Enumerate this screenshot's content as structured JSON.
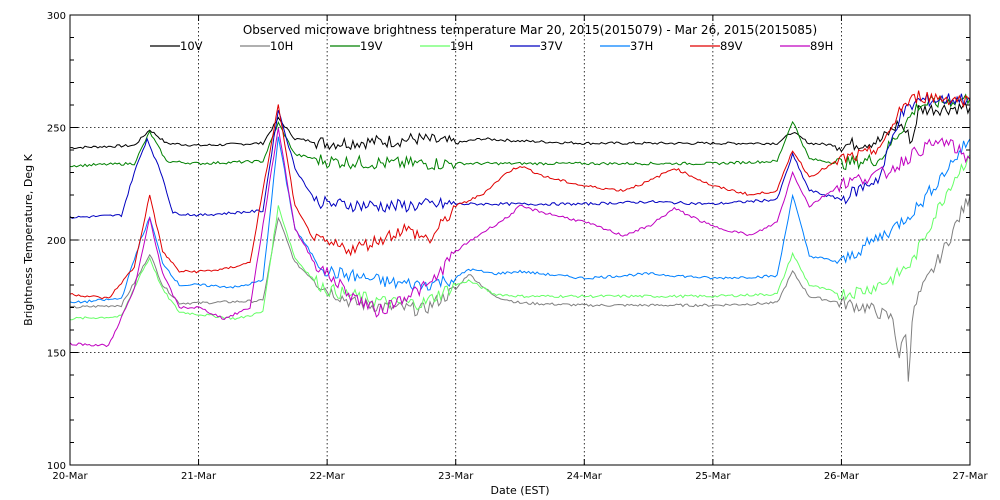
{
  "chart_data": {
    "type": "line",
    "title": "Observed microwave brightness temperature Mar 20, 2015(2015079) - Mar 26, 2015(2015085)",
    "xlabel": "Date (EST)",
    "ylabel": "Brightness Temperature, Deg K",
    "x_categories": [
      "20-Mar",
      "21-Mar",
      "22-Mar",
      "23-Mar",
      "24-Mar",
      "25-Mar",
      "26-Mar",
      "27-Mar"
    ],
    "xlim": [
      0,
      7
    ],
    "ylim": [
      100,
      300
    ],
    "yticks": [
      100,
      150,
      200,
      250,
      300
    ],
    "grid": true,
    "legend_position": "top",
    "x_unit": "days since 20-Mar 00:00",
    "series": [
      {
        "name": "10V",
        "color": "#000000",
        "points": [
          [
            0,
            241
          ],
          [
            0.5,
            242
          ],
          [
            0.62,
            249
          ],
          [
            0.75,
            243
          ],
          [
            1.0,
            242
          ],
          [
            1.5,
            243
          ],
          [
            1.62,
            254
          ],
          [
            1.75,
            245
          ],
          [
            2.0,
            243
          ],
          [
            2.5,
            244
          ],
          [
            2.7,
            245
          ],
          [
            3.0,
            243
          ],
          [
            3.2,
            245
          ],
          [
            3.5,
            244
          ],
          [
            4.0,
            243
          ],
          [
            4.5,
            243
          ],
          [
            5.0,
            243
          ],
          [
            5.5,
            243
          ],
          [
            5.62,
            248
          ],
          [
            5.75,
            243
          ],
          [
            6.0,
            242
          ],
          [
            6.3,
            244
          ],
          [
            6.45,
            252
          ],
          [
            6.55,
            244
          ],
          [
            6.6,
            258
          ],
          [
            7.0,
            259
          ]
        ]
      },
      {
        "name": "10H",
        "color": "#808080",
        "points": [
          [
            0,
            170
          ],
          [
            0.4,
            171
          ],
          [
            0.55,
            186
          ],
          [
            0.62,
            194
          ],
          [
            0.72,
            180
          ],
          [
            0.85,
            172
          ],
          [
            1.0,
            172
          ],
          [
            1.5,
            173
          ],
          [
            1.62,
            210
          ],
          [
            1.75,
            190
          ],
          [
            1.9,
            182
          ],
          [
            2.0,
            178
          ],
          [
            2.2,
            172
          ],
          [
            2.5,
            170
          ],
          [
            2.75,
            169
          ],
          [
            3.0,
            178
          ],
          [
            3.1,
            185
          ],
          [
            3.3,
            175
          ],
          [
            3.5,
            172
          ],
          [
            4.0,
            171
          ],
          [
            4.5,
            171
          ],
          [
            5.0,
            171
          ],
          [
            5.5,
            172
          ],
          [
            5.62,
            186
          ],
          [
            5.75,
            175
          ],
          [
            6.0,
            172
          ],
          [
            6.2,
            170
          ],
          [
            6.4,
            165
          ],
          [
            6.45,
            148
          ],
          [
            6.5,
            160
          ],
          [
            6.52,
            138
          ],
          [
            6.55,
            165
          ],
          [
            6.6,
            175
          ],
          [
            6.8,
            196
          ],
          [
            7.0,
            220
          ]
        ]
      },
      {
        "name": "19V",
        "color": "#008000",
        "points": [
          [
            0,
            233
          ],
          [
            0.5,
            234
          ],
          [
            0.62,
            248
          ],
          [
            0.75,
            235
          ],
          [
            1.0,
            234
          ],
          [
            1.5,
            235
          ],
          [
            1.62,
            252
          ],
          [
            1.75,
            238
          ],
          [
            2.0,
            235
          ],
          [
            2.5,
            234
          ],
          [
            3.0,
            234
          ],
          [
            3.5,
            234
          ],
          [
            4.0,
            234
          ],
          [
            4.5,
            234
          ],
          [
            5.0,
            234
          ],
          [
            5.5,
            235
          ],
          [
            5.62,
            253
          ],
          [
            5.75,
            236
          ],
          [
            6.0,
            234
          ],
          [
            6.3,
            236
          ],
          [
            6.45,
            248
          ],
          [
            6.6,
            260
          ],
          [
            7.0,
            263
          ]
        ]
      },
      {
        "name": "19H",
        "color": "#66FF66",
        "points": [
          [
            0,
            165
          ],
          [
            0.4,
            166
          ],
          [
            0.55,
            185
          ],
          [
            0.62,
            192
          ],
          [
            0.72,
            178
          ],
          [
            0.85,
            168
          ],
          [
            1.0,
            167
          ],
          [
            1.3,
            165
          ],
          [
            1.5,
            168
          ],
          [
            1.62,
            215
          ],
          [
            1.75,
            192
          ],
          [
            1.9,
            182
          ],
          [
            2.0,
            178
          ],
          [
            2.3,
            174
          ],
          [
            2.5,
            172
          ],
          [
            2.75,
            172
          ],
          [
            3.0,
            180
          ],
          [
            3.1,
            182
          ],
          [
            3.3,
            176
          ],
          [
            3.5,
            175
          ],
          [
            4.0,
            175
          ],
          [
            4.5,
            175
          ],
          [
            5.0,
            175
          ],
          [
            5.5,
            176
          ],
          [
            5.62,
            194
          ],
          [
            5.75,
            180
          ],
          [
            6.0,
            176
          ],
          [
            6.2,
            178
          ],
          [
            6.4,
            183
          ],
          [
            6.55,
            190
          ],
          [
            6.7,
            208
          ],
          [
            6.85,
            225
          ],
          [
            7.0,
            238
          ]
        ]
      },
      {
        "name": "37V",
        "color": "#0000C0",
        "points": [
          [
            0,
            210
          ],
          [
            0.4,
            211
          ],
          [
            0.5,
            230
          ],
          [
            0.6,
            245
          ],
          [
            0.72,
            228
          ],
          [
            0.8,
            212
          ],
          [
            1.0,
            211
          ],
          [
            1.5,
            213
          ],
          [
            1.62,
            258
          ],
          [
            1.75,
            232
          ],
          [
            1.9,
            218
          ],
          [
            2.0,
            216
          ],
          [
            2.5,
            215
          ],
          [
            3.0,
            216
          ],
          [
            3.5,
            216
          ],
          [
            4.0,
            216
          ],
          [
            4.5,
            217
          ],
          [
            5.0,
            216
          ],
          [
            5.5,
            218
          ],
          [
            5.62,
            238
          ],
          [
            5.75,
            222
          ],
          [
            6.0,
            218
          ],
          [
            6.3,
            228
          ],
          [
            6.45,
            255
          ],
          [
            6.6,
            262
          ],
          [
            7.0,
            263
          ]
        ]
      },
      {
        "name": "37H",
        "color": "#0080FF",
        "points": [
          [
            0,
            172
          ],
          [
            0.4,
            174
          ],
          [
            0.55,
            200
          ],
          [
            0.62,
            210
          ],
          [
            0.72,
            190
          ],
          [
            0.85,
            180
          ],
          [
            1.0,
            180
          ],
          [
            1.3,
            179
          ],
          [
            1.5,
            182
          ],
          [
            1.62,
            246
          ],
          [
            1.75,
            205
          ],
          [
            1.9,
            192
          ],
          [
            2.0,
            186
          ],
          [
            2.3,
            183
          ],
          [
            2.5,
            181
          ],
          [
            2.75,
            180
          ],
          [
            3.0,
            183
          ],
          [
            3.1,
            187
          ],
          [
            3.3,
            185
          ],
          [
            3.5,
            186
          ],
          [
            4.0,
            183
          ],
          [
            4.5,
            185
          ],
          [
            5.0,
            183
          ],
          [
            5.5,
            184
          ],
          [
            5.62,
            220
          ],
          [
            5.75,
            193
          ],
          [
            6.0,
            190
          ],
          [
            6.2,
            198
          ],
          [
            6.4,
            205
          ],
          [
            6.6,
            215
          ],
          [
            6.8,
            230
          ],
          [
            7.0,
            245
          ]
        ]
      },
      {
        "name": "89V",
        "color": "#E00000",
        "points": [
          [
            0,
            176
          ],
          [
            0.3,
            174
          ],
          [
            0.5,
            188
          ],
          [
            0.62,
            220
          ],
          [
            0.72,
            195
          ],
          [
            0.85,
            186
          ],
          [
            1.0,
            186
          ],
          [
            1.2,
            187
          ],
          [
            1.4,
            190
          ],
          [
            1.62,
            260
          ],
          [
            1.75,
            215
          ],
          [
            1.9,
            200
          ],
          [
            2.0,
            198
          ],
          [
            2.2,
            196
          ],
          [
            2.4,
            200
          ],
          [
            2.6,
            205
          ],
          [
            2.8,
            200
          ],
          [
            3.0,
            215
          ],
          [
            3.2,
            220
          ],
          [
            3.4,
            230
          ],
          [
            3.5,
            233
          ],
          [
            3.7,
            228
          ],
          [
            4.0,
            224
          ],
          [
            4.3,
            222
          ],
          [
            4.5,
            226
          ],
          [
            4.7,
            232
          ],
          [
            5.0,
            224
          ],
          [
            5.3,
            220
          ],
          [
            5.5,
            222
          ],
          [
            5.62,
            240
          ],
          [
            5.75,
            228
          ],
          [
            6.0,
            236
          ],
          [
            6.2,
            238
          ],
          [
            6.35,
            244
          ],
          [
            6.45,
            258
          ],
          [
            6.6,
            264
          ],
          [
            7.0,
            262
          ]
        ]
      },
      {
        "name": "89H",
        "color": "#C000C0",
        "points": [
          [
            0,
            154
          ],
          [
            0.3,
            153
          ],
          [
            0.5,
            178
          ],
          [
            0.62,
            210
          ],
          [
            0.72,
            185
          ],
          [
            0.85,
            170
          ],
          [
            1.0,
            170
          ],
          [
            1.2,
            165
          ],
          [
            1.4,
            170
          ],
          [
            1.62,
            250
          ],
          [
            1.75,
            205
          ],
          [
            1.9,
            190
          ],
          [
            2.0,
            185
          ],
          [
            2.2,
            175
          ],
          [
            2.4,
            168
          ],
          [
            2.6,
            175
          ],
          [
            2.8,
            180
          ],
          [
            3.0,
            195
          ],
          [
            3.2,
            203
          ],
          [
            3.4,
            210
          ],
          [
            3.5,
            215
          ],
          [
            3.7,
            212
          ],
          [
            4.0,
            208
          ],
          [
            4.3,
            202
          ],
          [
            4.5,
            206
          ],
          [
            4.7,
            214
          ],
          [
            5.0,
            206
          ],
          [
            5.3,
            202
          ],
          [
            5.5,
            208
          ],
          [
            5.62,
            230
          ],
          [
            5.75,
            215
          ],
          [
            6.0,
            225
          ],
          [
            6.2,
            228
          ],
          [
            6.35,
            230
          ],
          [
            6.6,
            240
          ],
          [
            6.8,
            244
          ],
          [
            7.0,
            236
          ]
        ]
      }
    ]
  }
}
